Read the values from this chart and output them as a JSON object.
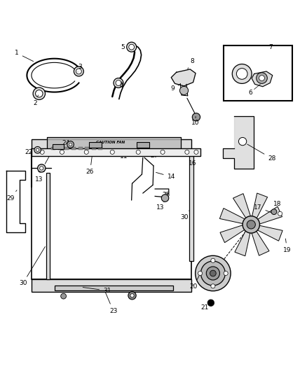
{
  "bg_color": "#ffffff",
  "fig_width": 4.38,
  "fig_height": 5.33,
  "dpi": 100
}
